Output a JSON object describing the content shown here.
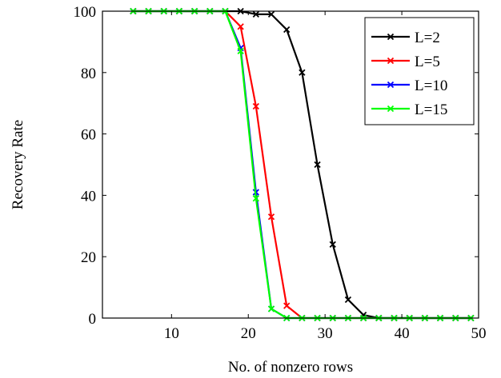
{
  "chart_data": {
    "type": "line",
    "xlabel": "No. of nonzero rows",
    "ylabel": "Recovery Rate",
    "xlim": [
      1,
      50
    ],
    "ylim": [
      0,
      100
    ],
    "xticks": [
      10,
      20,
      30,
      40,
      50
    ],
    "yticks": [
      0,
      20,
      40,
      60,
      80,
      100
    ],
    "grid": false,
    "legend_position": "top-right",
    "marker": "x",
    "series": [
      {
        "name": "L=2",
        "color": "#000000",
        "x": [
          5,
          7,
          9,
          11,
          13,
          15,
          17,
          19,
          21,
          23,
          25,
          27,
          29,
          31,
          33,
          35,
          37,
          39,
          41,
          43,
          45,
          47,
          49
        ],
        "values": [
          100,
          100,
          100,
          100,
          100,
          100,
          100,
          100,
          99,
          99,
          94,
          80,
          50,
          24,
          6,
          1,
          0,
          0,
          0,
          0,
          0,
          0,
          0
        ]
      },
      {
        "name": "L=5",
        "color": "#ff0000",
        "x": [
          5,
          7,
          9,
          11,
          13,
          15,
          17,
          19,
          21,
          23,
          25,
          27,
          29,
          31,
          33,
          35,
          37,
          39,
          41,
          43,
          45,
          47,
          49
        ],
        "values": [
          100,
          100,
          100,
          100,
          100,
          100,
          100,
          95,
          69,
          33,
          4,
          0,
          0,
          0,
          0,
          0,
          0,
          0,
          0,
          0,
          0,
          0,
          0
        ]
      },
      {
        "name": "L=10",
        "color": "#0000ff",
        "x": [
          5,
          7,
          9,
          11,
          13,
          15,
          17,
          19,
          21,
          23,
          25,
          27,
          29,
          31,
          33,
          35,
          37,
          39,
          41,
          43,
          45,
          47,
          49
        ],
        "values": [
          100,
          100,
          100,
          100,
          100,
          100,
          100,
          88,
          41,
          3,
          0,
          0,
          0,
          0,
          0,
          0,
          0,
          0,
          0,
          0,
          0,
          0,
          0
        ]
      },
      {
        "name": "L=15",
        "color": "#00ff00",
        "x": [
          5,
          7,
          9,
          11,
          13,
          15,
          17,
          19,
          21,
          23,
          25,
          27,
          29,
          31,
          33,
          35,
          37,
          39,
          41,
          43,
          45,
          47,
          49
        ],
        "values": [
          100,
          100,
          100,
          100,
          100,
          100,
          100,
          87,
          39,
          3,
          0,
          0,
          0,
          0,
          0,
          0,
          0,
          0,
          0,
          0,
          0,
          0,
          0
        ]
      }
    ]
  }
}
